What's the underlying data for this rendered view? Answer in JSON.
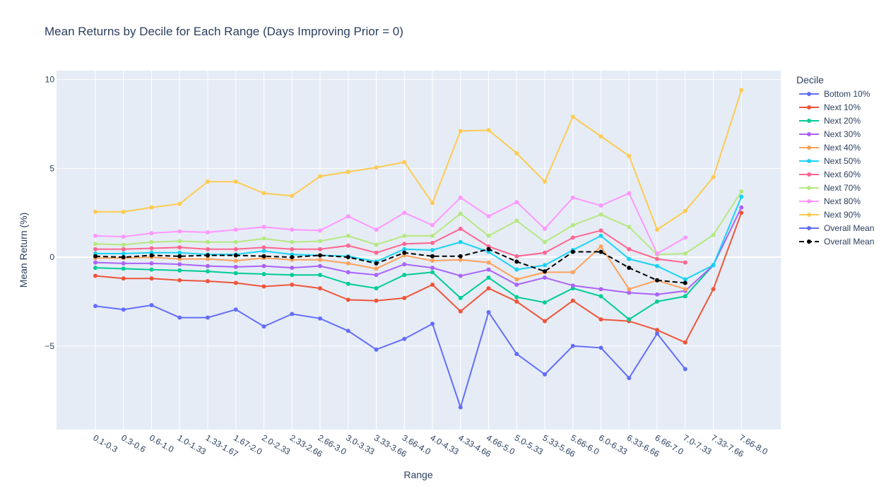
{
  "chart_data": {
    "type": "line",
    "title": "Mean Returns by Decile for Each Range (Days Improving Prior = 0)",
    "xlabel": "Range",
    "ylabel": "Mean Return (%)",
    "ylim": [
      -9.7,
      10.5
    ],
    "yticks": [
      10,
      5,
      0,
      -5
    ],
    "ytick_labels": [
      "10",
      "5",
      "0",
      "−5"
    ],
    "grid": true,
    "legend_title": "Decile",
    "legend_position": "right",
    "categories": [
      "0.1-0.3",
      "0.3-0.6",
      "0.6-1.0",
      "1.0-1.33",
      "1.33-1.67",
      "1.67-2.0",
      "2.0-2.33",
      "2.33-2.66",
      "2.66-3.0",
      "3.0-3.33",
      "3.33-3.66",
      "3.66-4.0",
      "4.0-4.33",
      "4.33-4.66",
      "4.66-5.0",
      "5.0-5.33",
      "5.33-5.66",
      "5.66-6.0",
      "6.0-6.33",
      "6.33-6.66",
      "6.66-7.0",
      "7.0-7.33",
      "7.33-7.66",
      "7.66-8.0"
    ],
    "series": [
      {
        "name": "Bottom 10%",
        "color": "#636efa",
        "dash": false,
        "values": [
          -2.75,
          -2.95,
          -2.7,
          -3.4,
          -3.4,
          -2.95,
          -3.9,
          -3.2,
          -3.45,
          -4.15,
          -5.2,
          -4.6,
          -3.75,
          -8.45,
          -3.1,
          -5.45,
          -6.6,
          -5.0,
          -5.1,
          -6.8,
          -4.3,
          -6.3,
          null,
          null
        ]
      },
      {
        "name": "Next 10%",
        "color": "#ef553b",
        "dash": false,
        "values": [
          -1.05,
          -1.2,
          -1.2,
          -1.3,
          -1.35,
          -1.45,
          -1.65,
          -1.55,
          -1.75,
          -2.4,
          -2.45,
          -2.3,
          -1.55,
          -3.05,
          -1.75,
          -2.5,
          -3.6,
          -2.45,
          -3.5,
          -3.6,
          -4.1,
          -4.8,
          -1.8,
          2.5
        ]
      },
      {
        "name": "Next 20%",
        "color": "#00cc96",
        "dash": false,
        "values": [
          -0.6,
          -0.65,
          -0.7,
          -0.75,
          -0.8,
          -0.9,
          -0.95,
          -1.0,
          -1.0,
          -1.5,
          -1.75,
          -1.0,
          -0.85,
          -2.3,
          -1.15,
          -2.25,
          -2.55,
          -1.75,
          -2.2,
          -3.5,
          -2.5,
          -2.2,
          -0.45,
          null
        ]
      },
      {
        "name": "Next 30%",
        "color": "#ab63fa",
        "dash": false,
        "values": [
          -0.3,
          -0.35,
          -0.35,
          -0.4,
          -0.5,
          -0.55,
          -0.5,
          -0.6,
          -0.5,
          -0.85,
          -1.0,
          -0.4,
          -0.6,
          -1.05,
          -0.7,
          -1.55,
          -1.15,
          -1.6,
          -1.8,
          -2.0,
          -2.1,
          -1.9,
          -0.45,
          2.8
        ]
      },
      {
        "name": "Next 40%",
        "color": "#ffa15a",
        "dash": false,
        "values": [
          -0.05,
          -0.05,
          0.0,
          -0.1,
          -0.1,
          -0.2,
          -0.05,
          -0.15,
          -0.15,
          -0.35,
          -0.65,
          0.1,
          -0.2,
          -0.15,
          -0.3,
          -1.25,
          -0.85,
          -0.85,
          0.6,
          -1.8,
          -1.3,
          -1.8,
          null,
          null
        ]
      },
      {
        "name": "Next 50%",
        "color": "#19d3f3",
        "dash": false,
        "values": [
          0.2,
          0.2,
          0.25,
          0.25,
          0.15,
          0.15,
          0.35,
          0.15,
          0.1,
          0.05,
          -0.25,
          0.45,
          0.4,
          0.85,
          0.3,
          -0.7,
          -0.45,
          0.4,
          1.2,
          -0.1,
          -0.5,
          -1.25,
          -0.45,
          3.4
        ]
      },
      {
        "name": "Next 60%",
        "color": "#ff6692",
        "dash": false,
        "values": [
          0.45,
          0.45,
          0.5,
          0.55,
          0.45,
          0.45,
          0.55,
          0.45,
          0.45,
          0.65,
          0.25,
          0.75,
          0.8,
          1.6,
          0.6,
          0.05,
          0.25,
          1.1,
          1.5,
          0.45,
          -0.1,
          -0.3,
          null,
          null
        ]
      },
      {
        "name": "Next 70%",
        "color": "#b6e880",
        "dash": false,
        "values": [
          0.75,
          0.7,
          0.85,
          0.9,
          0.85,
          0.85,
          1.05,
          0.85,
          0.9,
          1.2,
          0.7,
          1.2,
          1.2,
          2.45,
          1.2,
          2.05,
          0.85,
          1.8,
          2.4,
          1.7,
          0.15,
          0.2,
          1.25,
          3.7
        ]
      },
      {
        "name": "Next 80%",
        "color": "#ff97ff",
        "dash": false,
        "values": [
          1.2,
          1.15,
          1.35,
          1.45,
          1.4,
          1.55,
          1.7,
          1.55,
          1.5,
          2.3,
          1.55,
          2.5,
          1.8,
          3.35,
          2.3,
          3.1,
          1.6,
          3.35,
          2.9,
          3.6,
          0.2,
          1.1,
          null,
          null
        ]
      },
      {
        "name": "Next 90%",
        "color": "#fecb52",
        "dash": false,
        "values": [
          2.55,
          2.55,
          2.8,
          3.0,
          4.25,
          4.25,
          3.6,
          3.45,
          4.55,
          4.8,
          5.05,
          5.35,
          3.05,
          7.1,
          7.15,
          5.85,
          4.25,
          7.9,
          6.8,
          5.7,
          1.55,
          2.6,
          4.5,
          9.4
        ]
      },
      {
        "name": "Overall Mean",
        "color": "#636efa",
        "dash": false,
        "values": [
          null,
          null,
          null,
          null,
          null,
          null,
          null,
          null,
          null,
          null,
          null,
          null,
          null,
          null,
          null,
          null,
          null,
          null,
          null,
          null,
          null,
          null,
          null,
          null
        ]
      },
      {
        "name": "Overall Mean",
        "color": "#000000",
        "dash": true,
        "values": [
          0.05,
          0.0,
          0.1,
          0.05,
          0.1,
          0.1,
          0.05,
          0.0,
          0.1,
          0.0,
          -0.35,
          0.25,
          0.05,
          0.05,
          0.45,
          -0.25,
          -0.8,
          0.3,
          0.3,
          -0.6,
          -1.3,
          -1.45,
          null,
          null
        ]
      }
    ]
  }
}
